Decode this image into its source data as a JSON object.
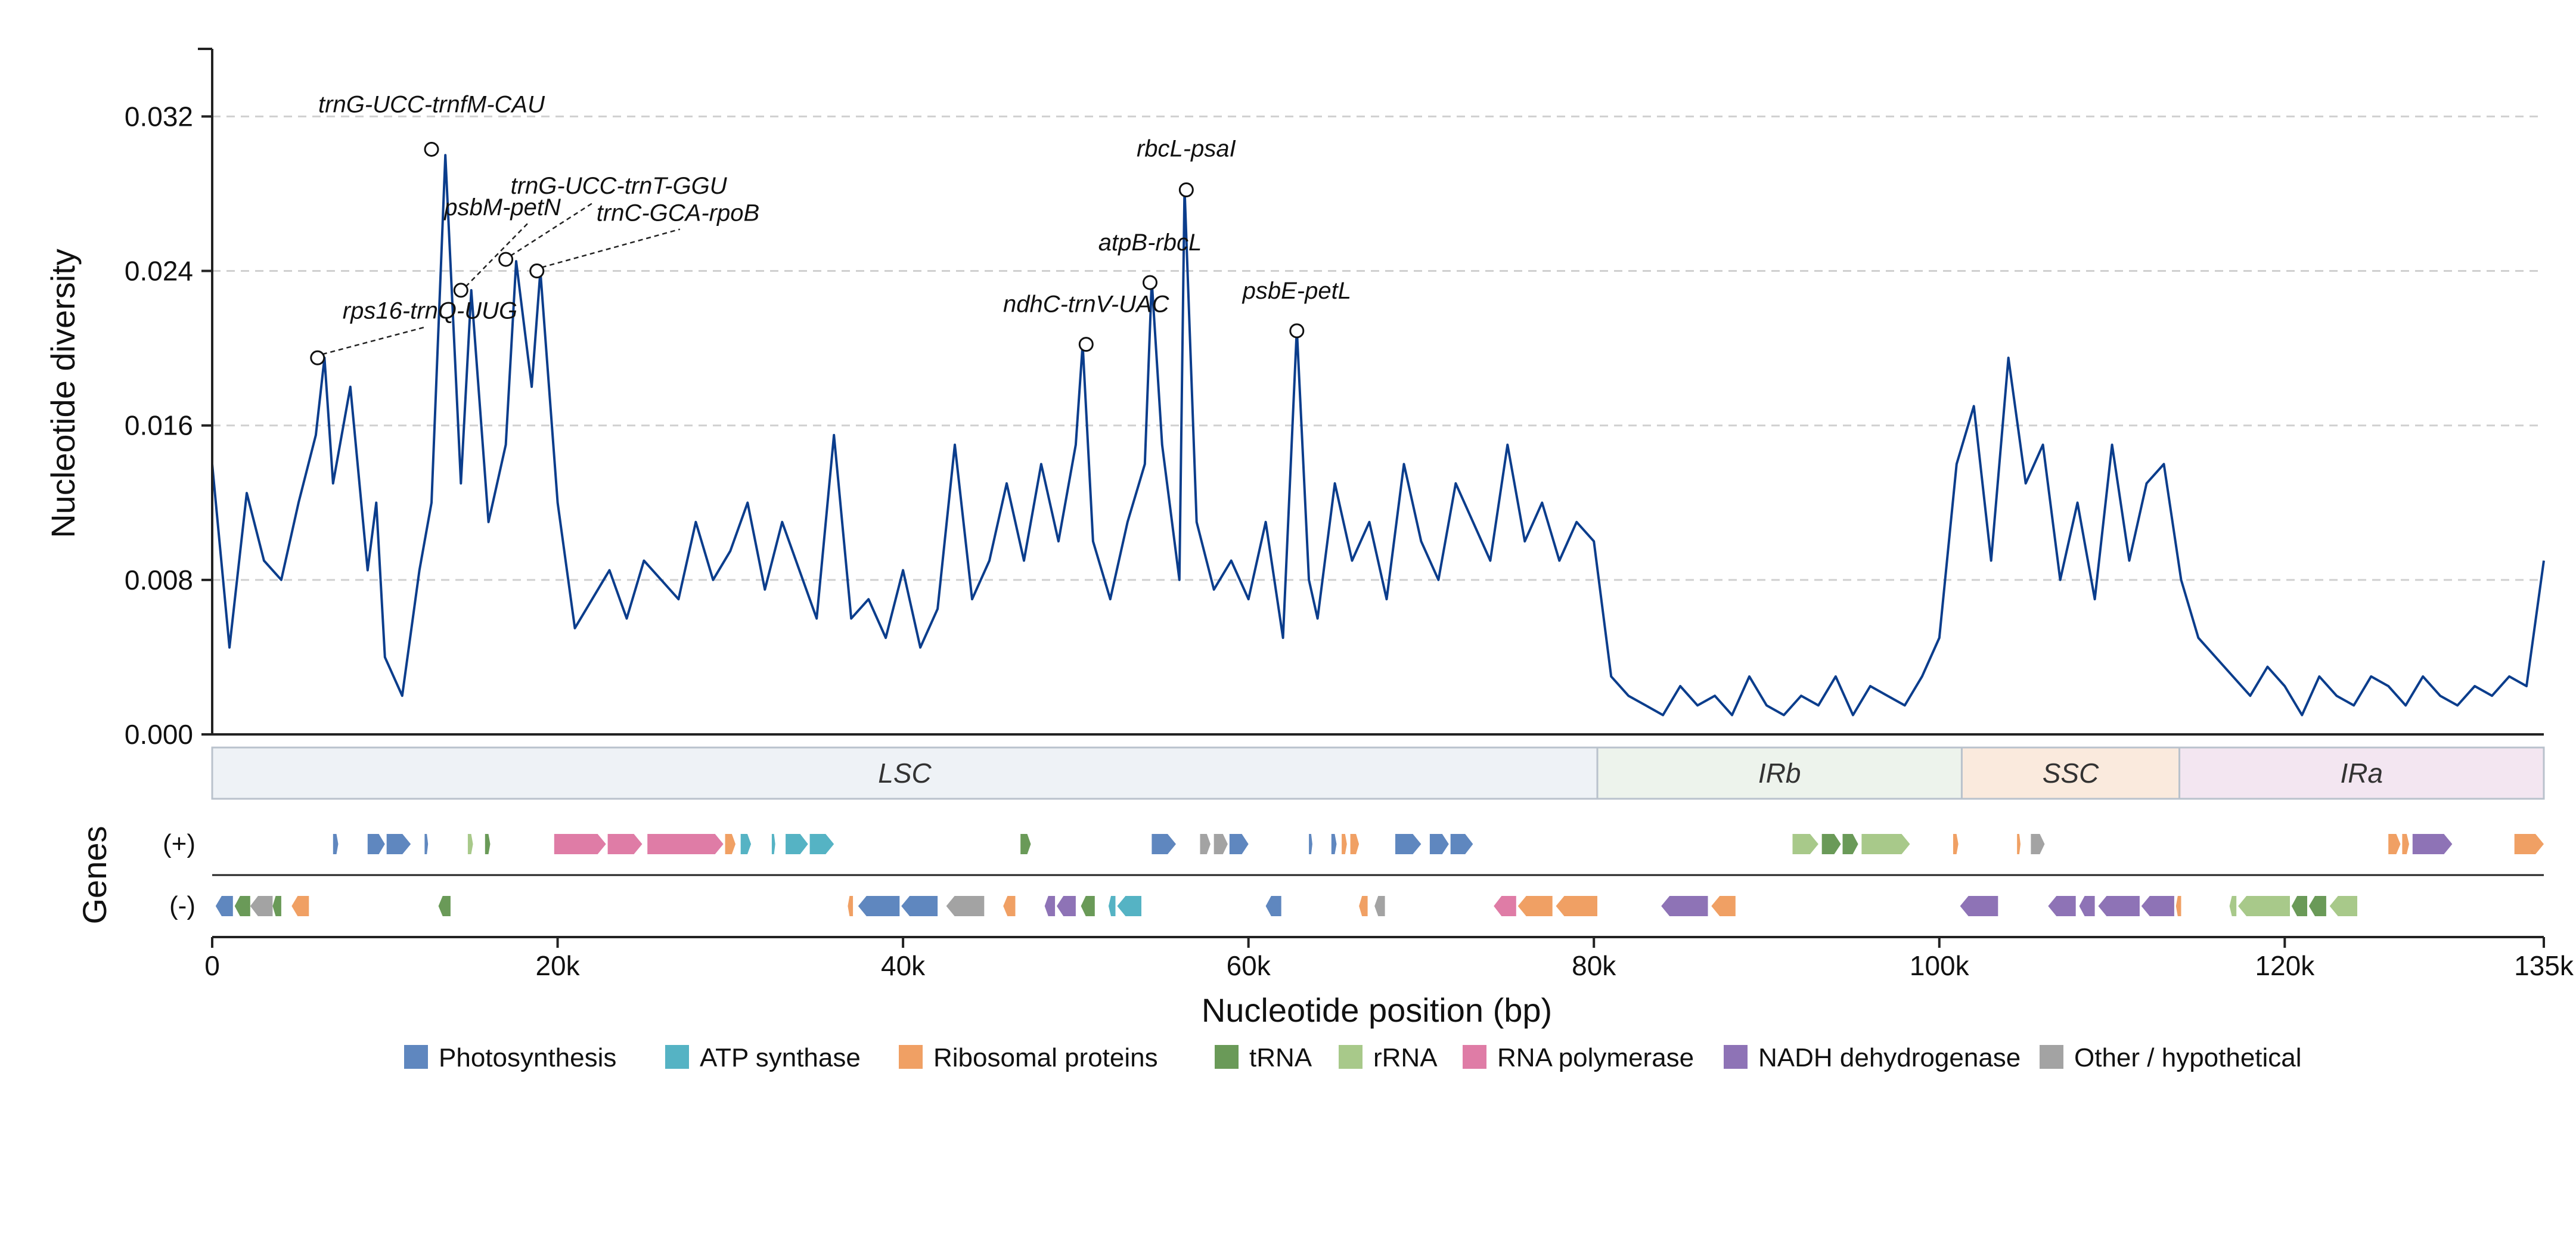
{
  "chart_data": {
    "type": "line",
    "title": "",
    "ylabel": "Nucleotide diversity",
    "xlabel": "Nucleotide position (bp)",
    "genes_label": "Genes",
    "plus_label": "(+)",
    "minus_label": "(-)",
    "xlim": [
      0,
      135000
    ],
    "ylim": [
      0,
      0.0355
    ],
    "y_ticks": [
      {
        "value": 0.0,
        "label": "0.000"
      },
      {
        "value": 0.008,
        "label": "0.008"
      },
      {
        "value": 0.016,
        "label": "0.016"
      },
      {
        "value": 0.024,
        "label": "0.024"
      },
      {
        "value": 0.032,
        "label": "0.032"
      }
    ],
    "x_ticks": [
      {
        "value": 0,
        "label": "0"
      },
      {
        "value": 20000,
        "label": "20k"
      },
      {
        "value": 40000,
        "label": "40k"
      },
      {
        "value": 60000,
        "label": "60k"
      },
      {
        "value": 80000,
        "label": "80k"
      },
      {
        "value": 100000,
        "label": "100k"
      },
      {
        "value": 120000,
        "label": "120k"
      },
      {
        "value": 135000,
        "label": "135k"
      }
    ],
    "grid": "horizontal dashed",
    "series_color": "#0b3d8c",
    "series": [
      {
        "x": [
          0,
          1000,
          2000,
          3000,
          4000,
          5000,
          6000,
          6500,
          7000,
          8000,
          9000,
          9500,
          10000,
          11000,
          12000,
          12700,
          13500,
          14400,
          15000,
          16000,
          17000,
          17600,
          18500,
          19000,
          20000,
          21000,
          22000,
          23000,
          24000,
          25000,
          26000,
          27000,
          28000,
          29000,
          30000,
          31000,
          32000,
          33000,
          34000,
          35000,
          36000,
          37000,
          38000,
          39000,
          40000,
          41000,
          42000,
          43000,
          44000,
          45000,
          46000,
          47000,
          48000,
          49000,
          50000,
          50400,
          51000,
          52000,
          53000,
          54000,
          54400,
          55000,
          56000,
          56300,
          57000,
          58000,
          59000,
          60000,
          61000,
          62000,
          62800,
          63500,
          64000,
          65000,
          66000,
          67000,
          68000,
          69000,
          70000,
          71000,
          72000,
          73000,
          74000,
          75000,
          76000,
          77000,
          78000,
          79000,
          80000,
          81000,
          82000,
          83000,
          84000,
          85000,
          86000,
          87000,
          88000,
          89000,
          90000,
          91000,
          92000,
          93000,
          94000,
          95000,
          96000,
          97000,
          98000,
          99000,
          100000,
          101000,
          102000,
          103000,
          104000,
          105000,
          106000,
          107000,
          108000,
          109000,
          110000,
          111000,
          112000,
          113000,
          114000,
          115000,
          116000,
          117000,
          118000,
          119000,
          120000,
          121000,
          122000,
          123000,
          124000,
          125000,
          126000,
          127000,
          128000,
          129000,
          130000,
          131000,
          132000,
          133000,
          134000,
          135000
        ],
        "y": [
          0.014,
          0.0045,
          0.0125,
          0.009,
          0.008,
          0.012,
          0.0155,
          0.0195,
          0.013,
          0.018,
          0.0085,
          0.012,
          0.004,
          0.002,
          0.0085,
          0.012,
          0.03,
          0.013,
          0.023,
          0.011,
          0.015,
          0.0245,
          0.018,
          0.024,
          0.012,
          0.0055,
          0.007,
          0.0085,
          0.006,
          0.009,
          0.008,
          0.007,
          0.011,
          0.008,
          0.0095,
          0.012,
          0.0075,
          0.011,
          0.0085,
          0.006,
          0.0155,
          0.006,
          0.007,
          0.005,
          0.0085,
          0.0045,
          0.0065,
          0.015,
          0.007,
          0.009,
          0.013,
          0.009,
          0.014,
          0.01,
          0.015,
          0.0202,
          0.01,
          0.007,
          0.011,
          0.014,
          0.0235,
          0.015,
          0.008,
          0.0283,
          0.011,
          0.0075,
          0.009,
          0.007,
          0.011,
          0.005,
          0.021,
          0.008,
          0.006,
          0.013,
          0.009,
          0.011,
          0.007,
          0.014,
          0.01,
          0.008,
          0.013,
          0.011,
          0.009,
          0.015,
          0.01,
          0.012,
          0.009,
          0.011,
          0.01,
          0.003,
          0.002,
          0.0015,
          0.001,
          0.0025,
          0.0015,
          0.002,
          0.001,
          0.003,
          0.0015,
          0.001,
          0.002,
          0.0015,
          0.003,
          0.001,
          0.0025,
          0.002,
          0.0015,
          0.003,
          0.005,
          0.014,
          0.017,
          0.009,
          0.0195,
          0.013,
          0.015,
          0.008,
          0.012,
          0.007,
          0.015,
          0.009,
          0.013,
          0.014,
          0.008,
          0.005,
          0.004,
          0.003,
          0.002,
          0.0035,
          0.0025,
          0.001,
          0.003,
          0.002,
          0.0015,
          0.003,
          0.0025,
          0.0015,
          0.003,
          0.002,
          0.0015,
          0.0025,
          0.002,
          0.003,
          0.0025,
          0.009
        ]
      }
    ],
    "peaks": [
      {
        "label": "rps16-trnQ-UUG",
        "x": 6100,
        "y": 0.0195
      },
      {
        "label": "trnG-UCC-trnfM-CAU",
        "x": 12700,
        "y": 0.0303
      },
      {
        "label": "psbM-petN",
        "x": 14400,
        "y": 0.023
      },
      {
        "label": "trnG-UCC-trnT-GGU",
        "x": 17000,
        "y": 0.0246
      },
      {
        "label": "trnC-GCA-rpoB",
        "x": 18800,
        "y": 0.024
      },
      {
        "label": "ndhC-trnV-UAC",
        "x": 50600,
        "y": 0.0202
      },
      {
        "label": "atpB-rbcL",
        "x": 54300,
        "y": 0.0234
      },
      {
        "label": "rbcL-psaI",
        "x": 56400,
        "y": 0.0282
      },
      {
        "label": "psbE-petL",
        "x": 62800,
        "y": 0.0209
      }
    ],
    "regions": [
      {
        "label": "LSC",
        "start": 0,
        "end": 80200,
        "color": "#eef2f6"
      },
      {
        "label": "IRb",
        "start": 80200,
        "end": 101300,
        "color": "#edf3ec"
      },
      {
        "label": "SSC",
        "start": 101300,
        "end": 113900,
        "color": "#faeadd"
      },
      {
        "label": "IRa",
        "start": 113900,
        "end": 135000,
        "color": "#f3e6f1"
      }
    ],
    "gene_categories": [
      {
        "key": "photo",
        "label": "Photosynthesis",
        "color": "#5f87bf"
      },
      {
        "key": "atp",
        "label": "ATP synthase",
        "color": "#55b3c4"
      },
      {
        "key": "ribo",
        "label": "Ribosomal proteins",
        "color": "#f0a064"
      },
      {
        "key": "trna",
        "label": "tRNA",
        "color": "#6a9a58"
      },
      {
        "key": "rrna",
        "label": "rRNA",
        "color": "#a8c98a"
      },
      {
        "key": "rnapol",
        "label": "RNA polymerase",
        "color": "#df7ca6"
      },
      {
        "key": "ndh",
        "label": "NADH dehydrogenase",
        "color": "#8e73b6"
      },
      {
        "key": "other",
        "label": "Other / hypothetical",
        "color": "#a3a3a3"
      }
    ],
    "genes_plus": [
      {
        "start": 7000,
        "end": 7300,
        "cat": "photo"
      },
      {
        "start": 9000,
        "end": 10000,
        "cat": "photo"
      },
      {
        "start": 10100,
        "end": 11500,
        "cat": "photo"
      },
      {
        "start": 12300,
        "end": 12500,
        "cat": "photo"
      },
      {
        "start": 14800,
        "end": 15100,
        "cat": "rrna"
      },
      {
        "start": 15800,
        "end": 16100,
        "cat": "trna"
      },
      {
        "start": 19800,
        "end": 22800,
        "cat": "rnapol"
      },
      {
        "start": 22900,
        "end": 24900,
        "cat": "rnapol"
      },
      {
        "start": 25200,
        "end": 29600,
        "cat": "rnapol"
      },
      {
        "start": 29700,
        "end": 30300,
        "cat": "ribo"
      },
      {
        "start": 30600,
        "end": 31200,
        "cat": "atp"
      },
      {
        "start": 32400,
        "end": 32600,
        "cat": "atp"
      },
      {
        "start": 33200,
        "end": 34500,
        "cat": "atp"
      },
      {
        "start": 34600,
        "end": 36000,
        "cat": "atp"
      },
      {
        "start": 46800,
        "end": 47400,
        "cat": "trna"
      },
      {
        "start": 54400,
        "end": 55800,
        "cat": "photo"
      },
      {
        "start": 57200,
        "end": 57800,
        "cat": "other"
      },
      {
        "start": 58000,
        "end": 58800,
        "cat": "other"
      },
      {
        "start": 58900,
        "end": 60000,
        "cat": "photo"
      },
      {
        "start": 63500,
        "end": 63700,
        "cat": "photo"
      },
      {
        "start": 64800,
        "end": 65100,
        "cat": "photo"
      },
      {
        "start": 65400,
        "end": 65700,
        "cat": "ribo"
      },
      {
        "start": 65900,
        "end": 66400,
        "cat": "ribo"
      },
      {
        "start": 68500,
        "end": 70000,
        "cat": "photo"
      },
      {
        "start": 70500,
        "end": 71600,
        "cat": "photo"
      },
      {
        "start": 71700,
        "end": 73000,
        "cat": "photo"
      },
      {
        "start": 91500,
        "end": 93000,
        "cat": "rrna"
      },
      {
        "start": 93200,
        "end": 94300,
        "cat": "trna"
      },
      {
        "start": 94400,
        "end": 95300,
        "cat": "trna"
      },
      {
        "start": 95500,
        "end": 98300,
        "cat": "rrna"
      },
      {
        "start": 100800,
        "end": 101100,
        "cat": "ribo"
      },
      {
        "start": 104500,
        "end": 104700,
        "cat": "ribo"
      },
      {
        "start": 105300,
        "end": 106100,
        "cat": "other"
      },
      {
        "start": 126000,
        "end": 126700,
        "cat": "ribo"
      },
      {
        "start": 126800,
        "end": 127200,
        "cat": "ribo"
      },
      {
        "start": 127400,
        "end": 129700,
        "cat": "ndh"
      },
      {
        "start": 133300,
        "end": 135000,
        "cat": "ribo"
      }
    ],
    "genes_minus": [
      {
        "start": 200,
        "end": 1200,
        "cat": "photo"
      },
      {
        "start": 1300,
        "end": 2200,
        "cat": "trna"
      },
      {
        "start": 2200,
        "end": 3500,
        "cat": "other"
      },
      {
        "start": 3500,
        "end": 4000,
        "cat": "trna"
      },
      {
        "start": 4600,
        "end": 5600,
        "cat": "ribo"
      },
      {
        "start": 13100,
        "end": 13800,
        "cat": "trna"
      },
      {
        "start": 36800,
        "end": 37100,
        "cat": "ribo"
      },
      {
        "start": 37400,
        "end": 39800,
        "cat": "photo"
      },
      {
        "start": 39900,
        "end": 42000,
        "cat": "photo"
      },
      {
        "start": 42500,
        "end": 44700,
        "cat": "other"
      },
      {
        "start": 45800,
        "end": 46500,
        "cat": "ribo"
      },
      {
        "start": 48200,
        "end": 48800,
        "cat": "ndh"
      },
      {
        "start": 48900,
        "end": 50000,
        "cat": "ndh"
      },
      {
        "start": 50300,
        "end": 51100,
        "cat": "trna"
      },
      {
        "start": 51900,
        "end": 52300,
        "cat": "atp"
      },
      {
        "start": 52400,
        "end": 53800,
        "cat": "atp"
      },
      {
        "start": 61000,
        "end": 61900,
        "cat": "photo"
      },
      {
        "start": 66400,
        "end": 66900,
        "cat": "ribo"
      },
      {
        "start": 67300,
        "end": 67900,
        "cat": "other"
      },
      {
        "start": 74200,
        "end": 75500,
        "cat": "rnapol"
      },
      {
        "start": 75600,
        "end": 77600,
        "cat": "ribo"
      },
      {
        "start": 77800,
        "end": 80200,
        "cat": "ribo"
      },
      {
        "start": 83900,
        "end": 86600,
        "cat": "ndh"
      },
      {
        "start": 86800,
        "end": 88200,
        "cat": "ribo"
      },
      {
        "start": 101200,
        "end": 103400,
        "cat": "ndh"
      },
      {
        "start": 106300,
        "end": 107900,
        "cat": "ndh"
      },
      {
        "start": 108100,
        "end": 109000,
        "cat": "ndh"
      },
      {
        "start": 109200,
        "end": 111600,
        "cat": "ndh"
      },
      {
        "start": 111700,
        "end": 113600,
        "cat": "ndh"
      },
      {
        "start": 113700,
        "end": 114000,
        "cat": "ribo"
      },
      {
        "start": 116800,
        "end": 117200,
        "cat": "rrna"
      },
      {
        "start": 117300,
        "end": 120300,
        "cat": "rrna"
      },
      {
        "start": 120400,
        "end": 121300,
        "cat": "trna"
      },
      {
        "start": 121400,
        "end": 122400,
        "cat": "trna"
      },
      {
        "start": 122600,
        "end": 124200,
        "cat": "rrna"
      }
    ]
  }
}
